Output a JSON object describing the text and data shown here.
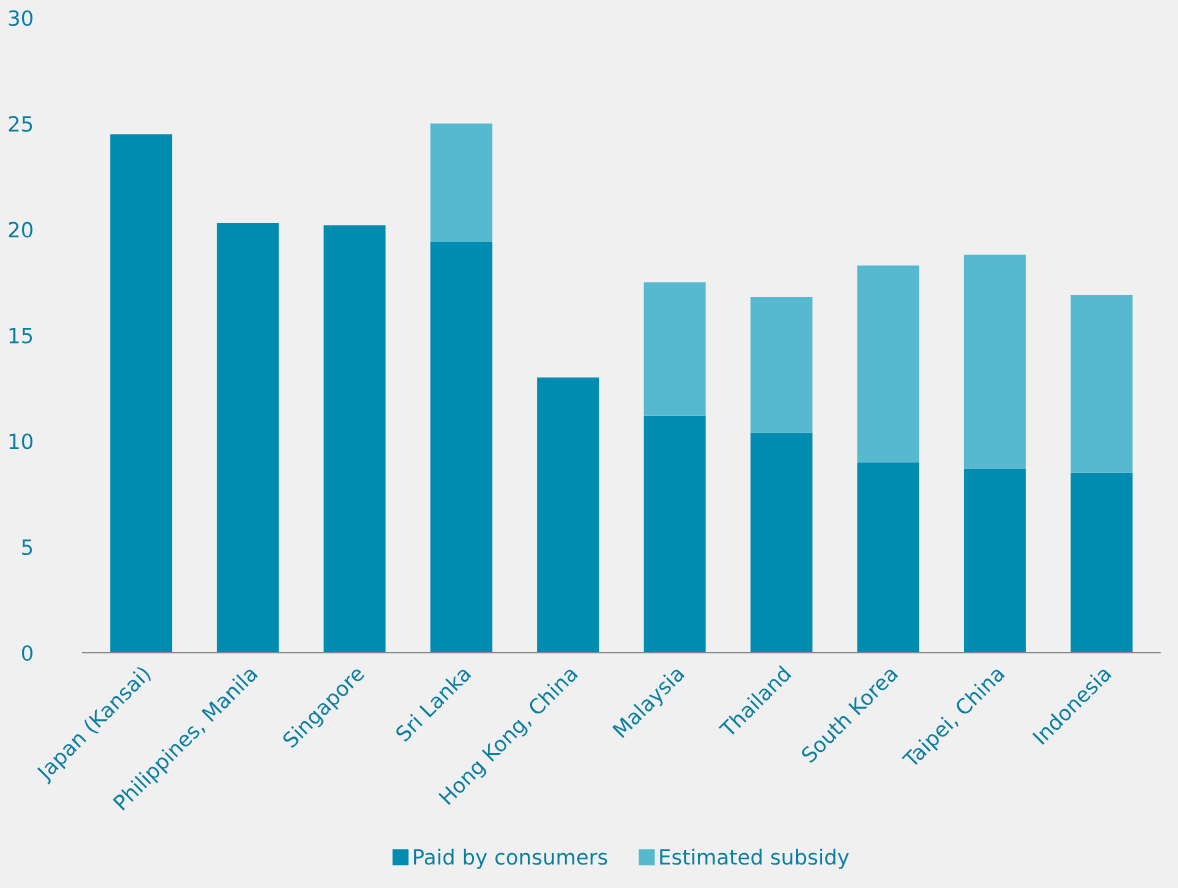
{
  "chart_data": {
    "type": "bar",
    "stacked": true,
    "categories": [
      "Japan (Kansai)",
      "Philippines, Manila",
      "Singapore",
      "Sri Lanka",
      "Hong Kong, China",
      "Malaysia",
      "Thailand",
      "South Korea",
      "Taipei, China",
      "Indonesia"
    ],
    "series": [
      {
        "name": "Paid by consumers",
        "color": "#008bb0",
        "values": [
          24.5,
          20.3,
          20.2,
          19.4,
          13.0,
          11.2,
          10.4,
          9.0,
          8.7,
          8.5
        ]
      },
      {
        "name": "Estimated subsidy",
        "color": "#56b9cf",
        "values": [
          null,
          null,
          null,
          5.6,
          null,
          6.3,
          6.4,
          9.3,
          10.1,
          8.4
        ]
      }
    ],
    "ylim": [
      0,
      30
    ],
    "yticks": [
      0,
      5,
      10,
      15,
      20,
      25,
      30
    ],
    "grid": false,
    "legend": "bottom"
  }
}
